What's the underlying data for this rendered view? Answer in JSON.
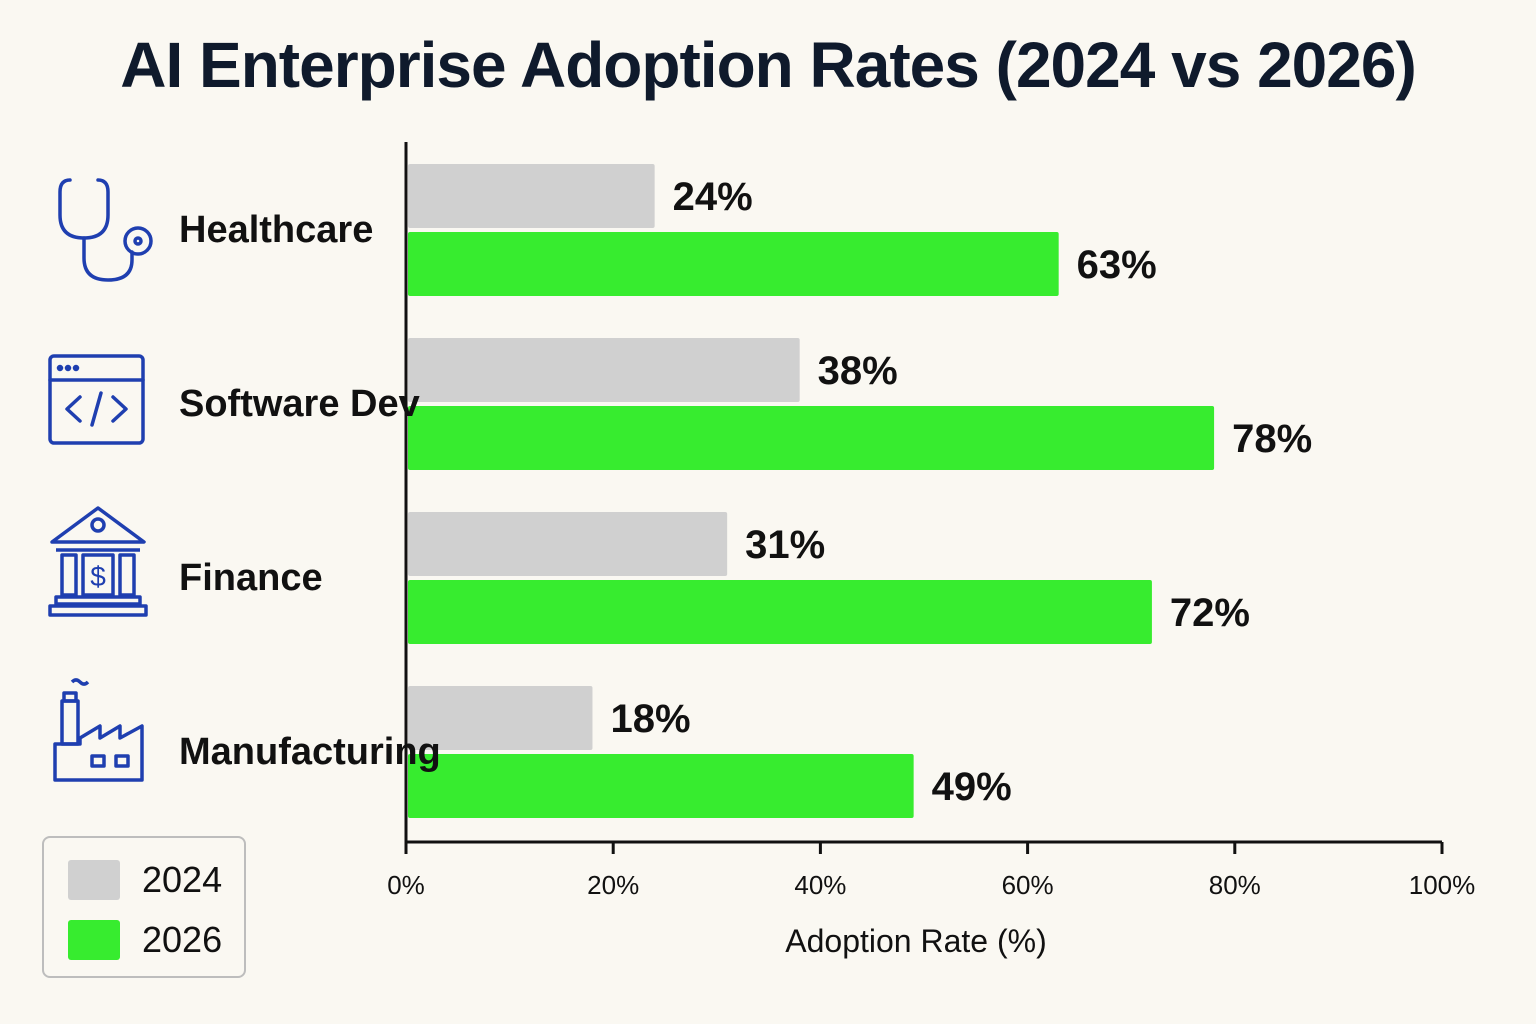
{
  "title": "AI Enterprise Adoption Rates (2024 vs 2026)",
  "colors": {
    "series_2024": "#d0d0d0",
    "series_2026": "#37ec2f",
    "icon": "#1f3fb0",
    "axis": "#111111"
  },
  "icons": [
    "stethoscope-icon",
    "code-window-icon",
    "bank-dollar-icon",
    "factory-icon"
  ],
  "chart_data": {
    "type": "bar",
    "orientation": "horizontal",
    "title": "AI Enterprise Adoption Rates (2024 vs 2026)",
    "categories": [
      "Healthcare",
      "Software Dev",
      "Finance",
      "Manufacturing"
    ],
    "series": [
      {
        "name": "2024",
        "values": [
          24,
          38,
          31,
          18
        ],
        "labels": [
          "24%",
          "38%",
          "31%",
          "18%"
        ]
      },
      {
        "name": "2026",
        "values": [
          63,
          78,
          72,
          49
        ],
        "labels": [
          "63%",
          "78%",
          "72%",
          "49%"
        ]
      }
    ],
    "xlabel": "Adoption Rate (%)",
    "ylabel": "",
    "xlim": [
      0,
      100
    ],
    "xticks": [
      "0%",
      "20%",
      "40%",
      "60%",
      "80%",
      "100%"
    ],
    "grid": false,
    "legend_position": "bottom-left"
  },
  "legend": {
    "items": [
      "2024",
      "2026"
    ]
  }
}
